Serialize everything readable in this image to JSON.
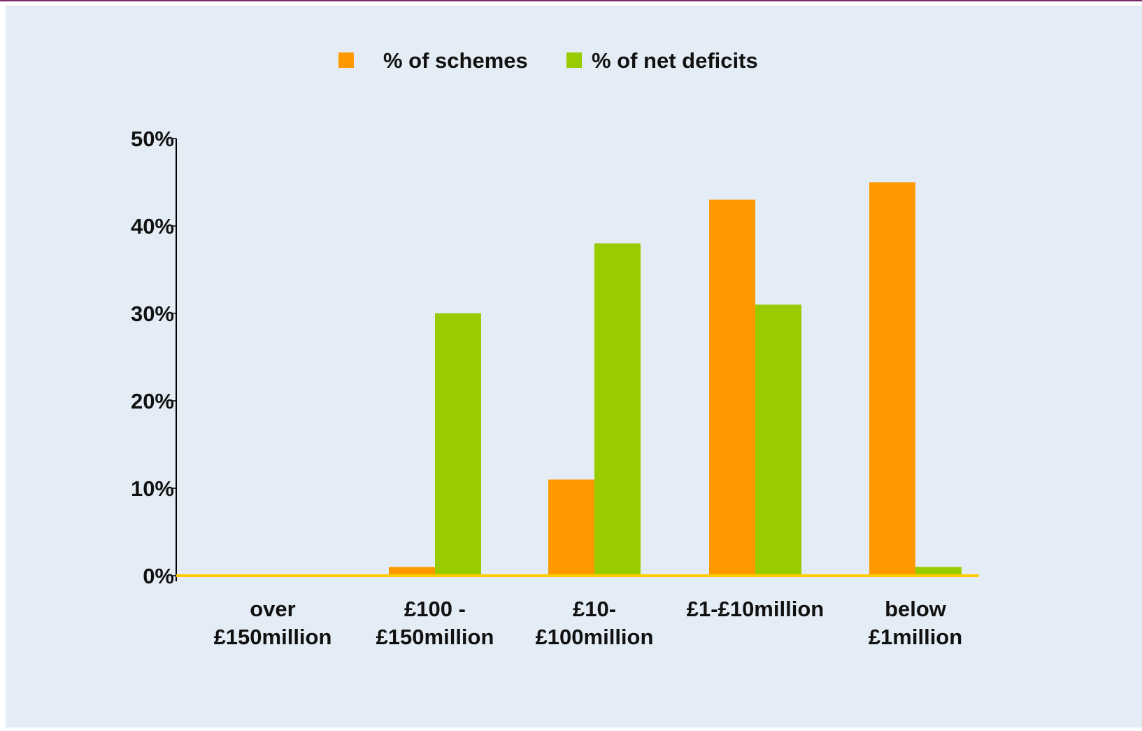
{
  "chart_data": {
    "type": "bar",
    "categories": [
      [
        "over",
        "£150million"
      ],
      [
        "£100 -",
        "£150million"
      ],
      [
        "£10-",
        "£100million"
      ],
      [
        "£1-£10million"
      ],
      [
        "below",
        "£1million"
      ]
    ],
    "series": [
      {
        "name": "% of schemes",
        "color": "#ff9900",
        "values": [
          0,
          1,
          11,
          43,
          45
        ]
      },
      {
        "name": "% of net deficits",
        "color": "#99cc00",
        "values": [
          0,
          30,
          38,
          31,
          1
        ]
      }
    ],
    "yticks": [
      "0%",
      "10%",
      "20%",
      "30%",
      "40%",
      "50%"
    ],
    "ylim": [
      0,
      50
    ],
    "baseline_color": "#ffcc00",
    "grid": false,
    "legend_position": "top-center",
    "title": "",
    "xlabel": "",
    "ylabel": ""
  }
}
